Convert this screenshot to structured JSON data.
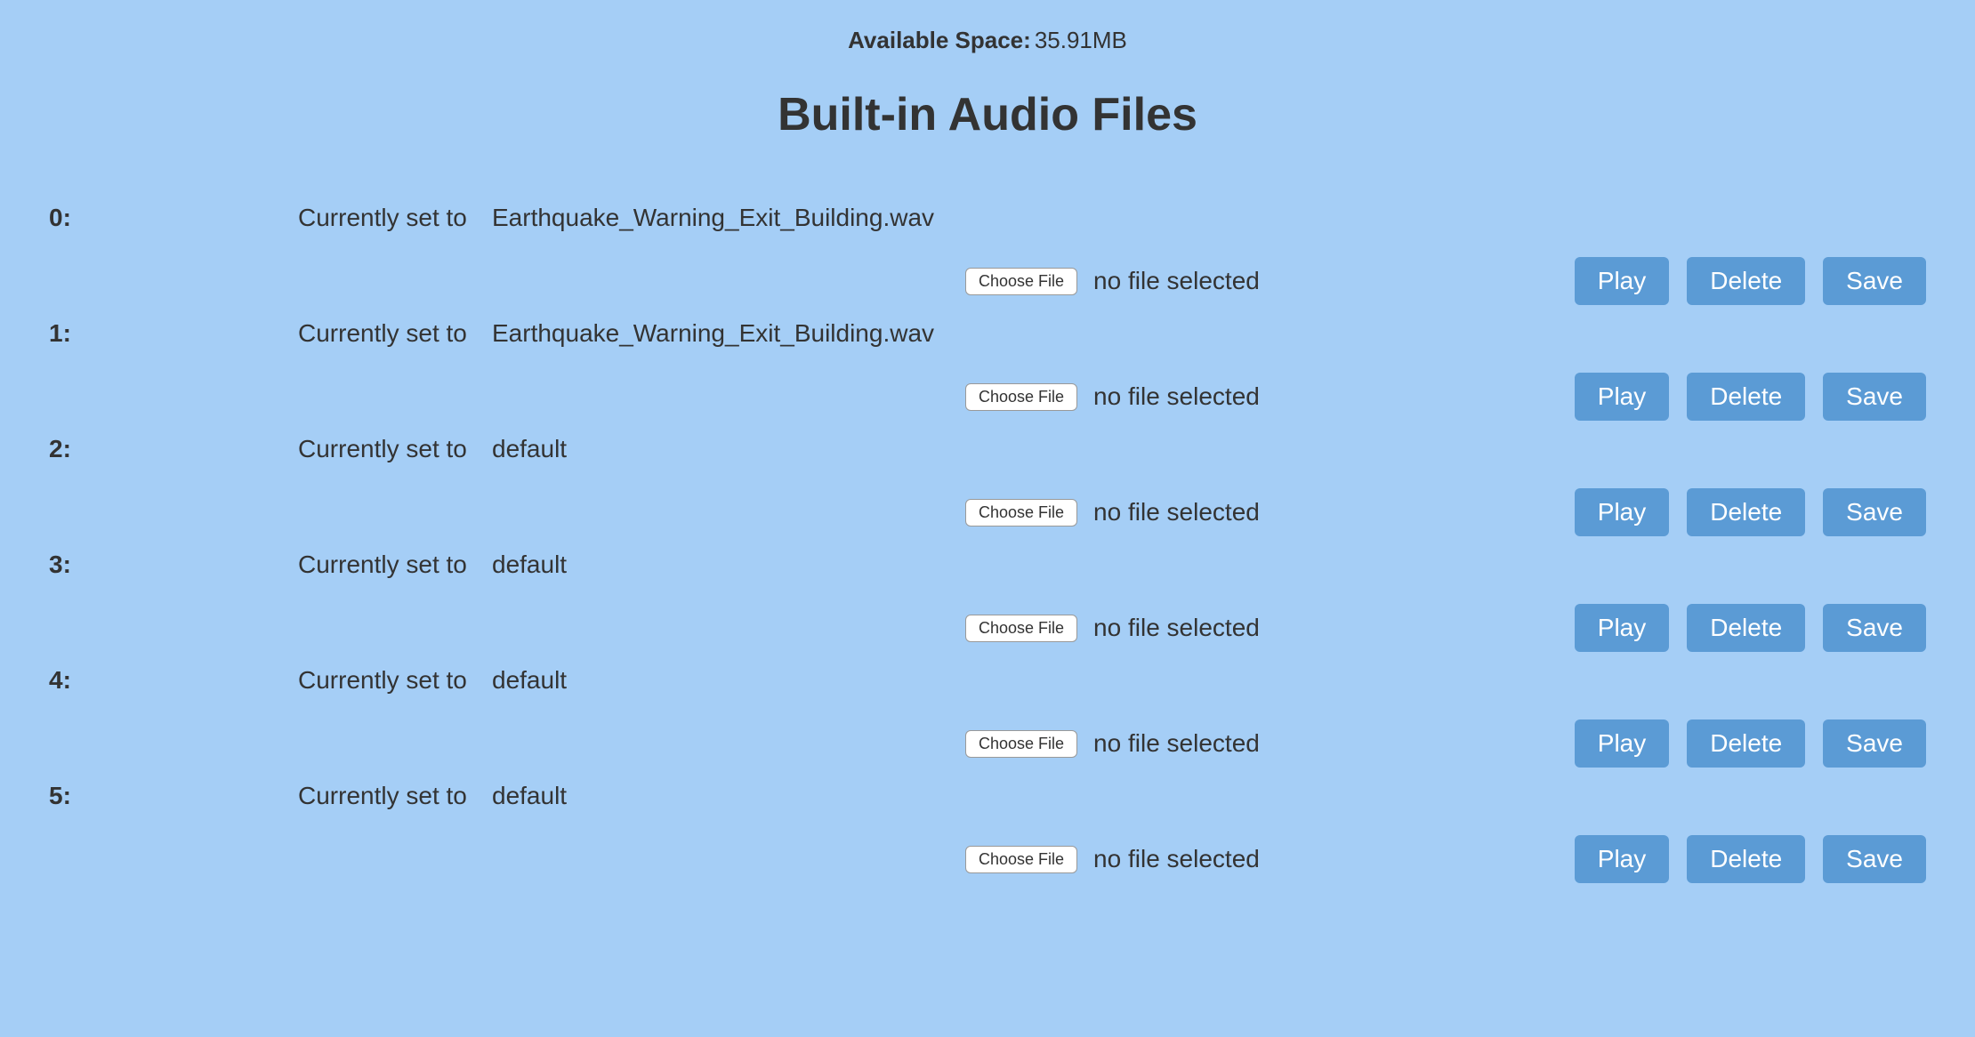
{
  "availableSpace": {
    "label": "Available Space:",
    "value": "35.91MB"
  },
  "sectionTitle": "Built-in Audio Files",
  "labels": {
    "currentlySetTo": "Currently set to",
    "chooseFile": "Choose File",
    "noFileSelected": "no file selected",
    "play": "Play",
    "delete": "Delete",
    "save": "Save"
  },
  "colors": {
    "background": "#a5cef6",
    "buttonBg": "#5b9bd5",
    "buttonText": "#ffffff",
    "text": "#333333",
    "chooseFileBg": "#ffffff",
    "chooseFileBorder": "#999999"
  },
  "files": [
    {
      "index": "0:",
      "filename": "Earthquake_Warning_Exit_Building.wav"
    },
    {
      "index": "1:",
      "filename": "Earthquake_Warning_Exit_Building.wav"
    },
    {
      "index": "2:",
      "filename": "default"
    },
    {
      "index": "3:",
      "filename": "default"
    },
    {
      "index": "4:",
      "filename": "default"
    },
    {
      "index": "5:",
      "filename": "default"
    }
  ]
}
